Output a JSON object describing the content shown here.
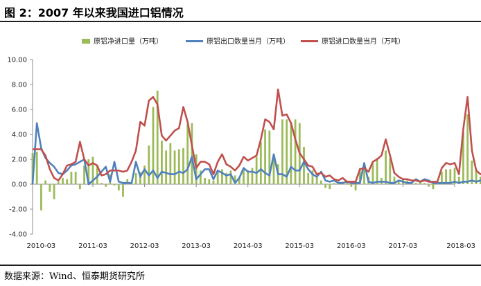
{
  "title": "图 2：2007 年以来我国进口铝情况",
  "source": "数据来源：Wind、恒泰期货研究所",
  "colors": {
    "net_import": "#9bbb59",
    "export": "#4f81bd",
    "import": "#c0504d",
    "axis": "#8c8c8c"
  },
  "chart_data": {
    "type": "bar+line",
    "title": "",
    "xlabel": "",
    "ylabel": "",
    "ylim": [
      -4,
      10
    ],
    "yticks": [
      "-4.00",
      "-2.00",
      "0.00",
      "2.00",
      "4.00",
      "6.00",
      "8.00",
      "10.00"
    ],
    "xticks": [
      "2010-03",
      "2011-03",
      "2012-03",
      "2013-03",
      "2014-03",
      "2015-03",
      "2016-03",
      "2017-03",
      "2018-03"
    ],
    "x_start": "2010-01",
    "x_end": "2018-03",
    "grid": false,
    "legend_position": "top",
    "series": [
      {
        "name": "原铝净进口量（万吨）",
        "type": "bar",
        "values": [
          2.5,
          2.6,
          -2.1,
          0.3,
          -0.6,
          -1.2,
          0.2,
          0.5,
          0.4,
          1.0,
          1.0,
          -0.4,
          1.5,
          2.0,
          2.2,
          1.5,
          0.1,
          -0.2,
          0.8,
          -0.1,
          -0.5,
          -1.0,
          0.4,
          0.2,
          0.9,
          1.0,
          1.5,
          3.1,
          6.2,
          7.5,
          3.5,
          2.7,
          3.3,
          2.7,
          2.8,
          2.9,
          4.8,
          4.9,
          2.4,
          1.1,
          0.5,
          0.4,
          0.3,
          1.0,
          1.2,
          0.9,
          1.1,
          0.7,
          0.6,
          1.2,
          1.1,
          1.3,
          2.2,
          3.4,
          4.4,
          4.3,
          2.2,
          1.6,
          5.2,
          5.2,
          5.0,
          5.2,
          4.9,
          3.0,
          0.9,
          1.1,
          0.7,
          0.3,
          -0.3,
          -0.4,
          0.1,
          0.2,
          0.2,
          0.3,
          -0.2,
          -0.5,
          1.3,
          1.2,
          0.6,
          1.7,
          2.1,
          0.5,
          2.7,
          2.1,
          0.6,
          0.3,
          0.4,
          0.3,
          0.1,
          0.1,
          0.2,
          0.1,
          -0.2,
          -0.4,
          0.1,
          1.0,
          1.2,
          1.2,
          1.3,
          0.6,
          4.2,
          5.6,
          1.9,
          1.2,
          0.6,
          0.7,
          0.8,
          0.8,
          0.6,
          0.4,
          0.5,
          -0.3,
          0.6,
          0.5,
          0.4,
          -0.3,
          0.6,
          -0.8,
          0.3
        ]
      },
      {
        "name": "原铝出口数量当月（万吨）",
        "type": "line",
        "values": [
          0.0,
          4.9,
          2.9,
          2.1,
          1.7,
          1.4,
          0.9,
          0.8,
          1.1,
          1.5,
          1.6,
          1.8,
          2.0,
          0.0,
          0.3,
          0.6,
          1.0,
          1.4,
          0.2,
          1.8,
          0.2,
          0.1,
          0.1,
          0.1,
          1.8,
          0.6,
          1.2,
          0.7,
          1.1,
          0.5,
          1.0,
          0.9,
          0.8,
          0.8,
          1.0,
          0.9,
          1.2,
          2.2,
          0.4,
          0.8,
          1.2,
          1.2,
          0.4,
          1.1,
          0.9,
          0.7,
          0.8,
          0.1,
          0.5,
          1.3,
          1.0,
          1.0,
          0.9,
          1.2,
          0.9,
          0.7,
          2.4,
          0.8,
          0.8,
          0.6,
          1.4,
          1.1,
          1.1,
          1.8,
          1.2,
          0.8,
          0.6,
          1.0,
          0.3,
          0.2,
          0.3,
          0.1,
          0.1,
          0.2,
          0.1,
          0.1,
          0.1,
          1.7,
          0.2,
          0.1,
          0.2,
          0.2,
          0.2,
          0.1,
          0.1,
          0.3,
          0.2,
          0.1,
          0.1,
          0.4,
          0.2,
          0.4,
          0.3,
          0.1,
          0.1,
          0.1,
          0.1,
          0.1,
          0.2,
          0.1,
          0.2,
          0.2,
          0.3,
          0.2,
          0.3,
          0.3,
          0.4,
          0.5,
          0.2,
          0.2,
          0.3,
          0.2,
          0.2,
          0.3,
          0.1,
          0.2,
          0.7,
          1.2,
          0.4
        ]
      },
      {
        "name": "原铝进口数量当月（万吨）",
        "type": "line",
        "values": [
          2.8,
          2.8,
          2.8,
          2.3,
          1.2,
          0.5,
          0.3,
          0.8,
          1.5,
          1.6,
          1.8,
          3.4,
          2.0,
          1.5,
          1.7,
          1.5,
          0.7,
          0.8,
          1.1,
          1.1,
          1.1,
          1.0,
          1.1,
          1.8,
          2.7,
          5.0,
          4.7,
          6.7,
          7.0,
          6.4,
          3.9,
          3.5,
          3.9,
          4.3,
          4.5,
          6.2,
          5.0,
          3.1,
          1.3,
          1.8,
          1.8,
          1.6,
          0.8,
          1.8,
          2.4,
          1.6,
          1.4,
          1.1,
          1.5,
          2.2,
          1.9,
          2.1,
          2.3,
          3.6,
          5.2,
          5.0,
          4.4,
          7.6,
          5.5,
          5.6,
          4.9,
          3.6,
          2.5,
          2.0,
          1.5,
          1.4,
          0.8,
          0.9,
          0.6,
          0.7,
          0.4,
          0.3,
          0.5,
          0.2,
          0.2,
          0.2,
          1.2,
          1.3,
          1.0,
          1.8,
          2.0,
          2.3,
          3.6,
          2.3,
          0.9,
          0.6,
          0.4,
          0.4,
          0.3,
          0.3,
          0.2,
          0.3,
          0.2,
          0.2,
          0.2,
          1.3,
          1.7,
          1.6,
          1.7,
          0.8,
          4.4,
          7.0,
          2.7,
          1.1,
          0.8,
          0.8,
          1.0,
          0.9,
          0.9,
          0.8,
          0.6,
          0.6,
          0.6,
          0.6,
          0.4,
          0.6,
          0.6,
          0.6,
          0.5
        ]
      }
    ]
  }
}
